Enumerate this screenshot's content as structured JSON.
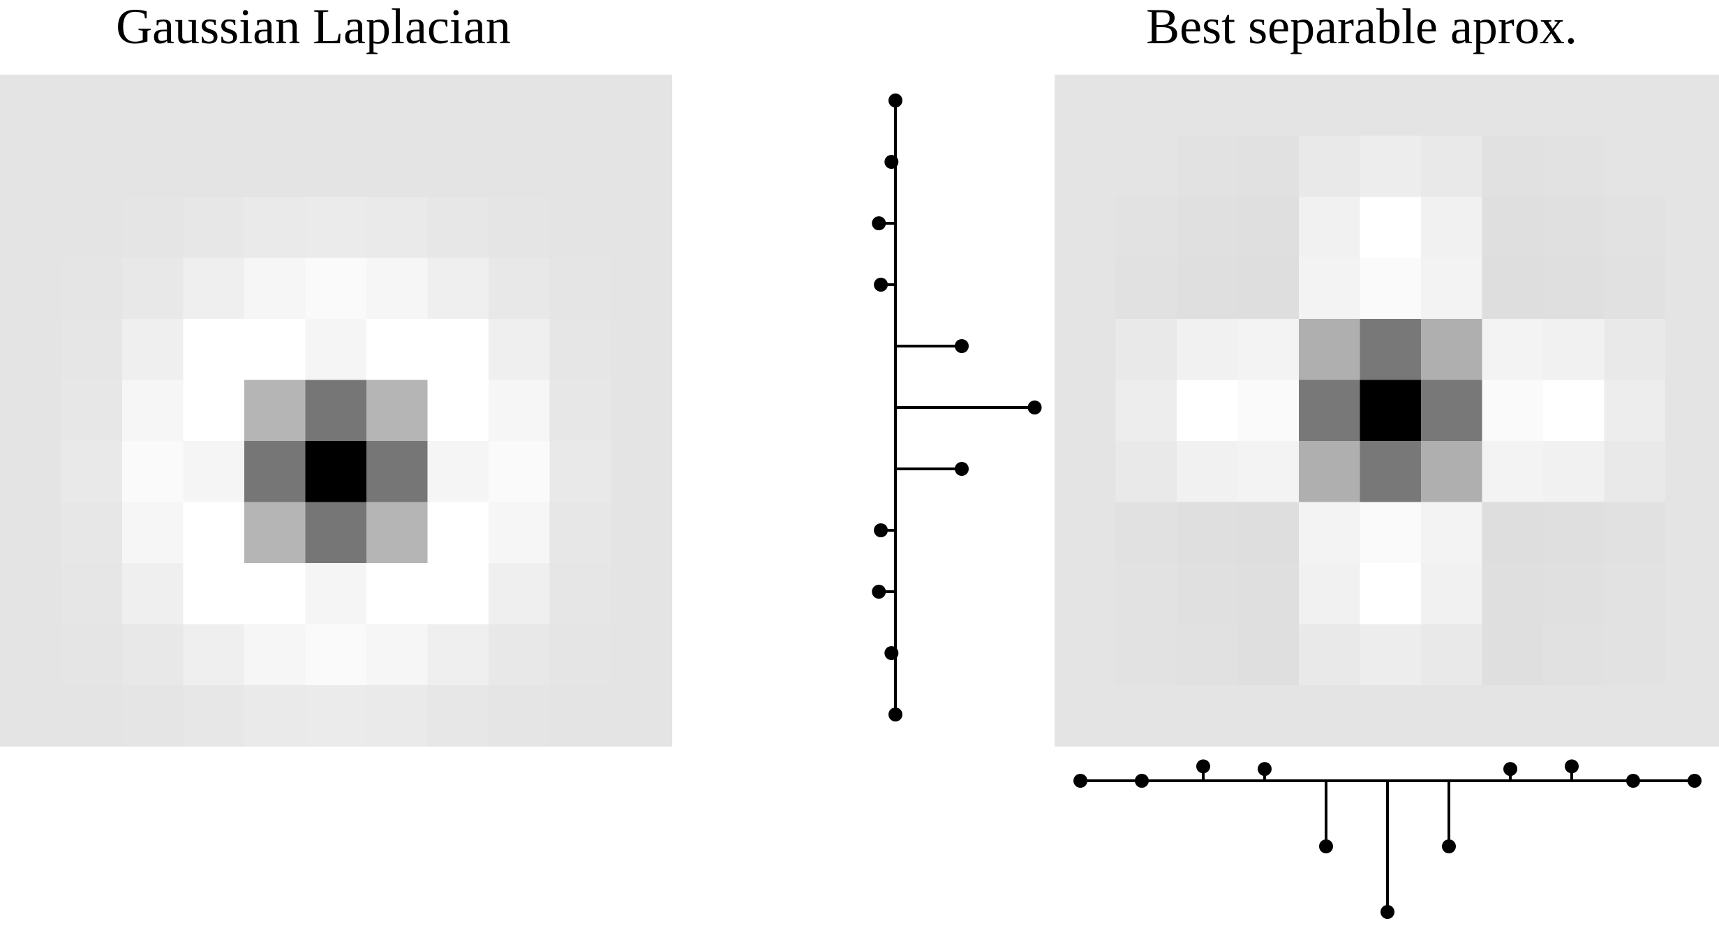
{
  "titles": {
    "left": "Gaussian Laplacian",
    "right": "Best separable aprox."
  },
  "colors": {
    "background": "#ffffff",
    "stem": "#000000"
  },
  "left_kernel_gray": [
    [
      228,
      228,
      228,
      228,
      228,
      228,
      228,
      228,
      228,
      228,
      228
    ],
    [
      228,
      228,
      228,
      228,
      228,
      228,
      228,
      228,
      228,
      228,
      228
    ],
    [
      228,
      228,
      229,
      231,
      234,
      235,
      234,
      231,
      229,
      228,
      228
    ],
    [
      228,
      229,
      232,
      239,
      246,
      250,
      246,
      239,
      232,
      229,
      228
    ],
    [
      228,
      230,
      239,
      255,
      255,
      245,
      255,
      255,
      239,
      230,
      228
    ],
    [
      228,
      231,
      246,
      255,
      181,
      118,
      181,
      255,
      246,
      231,
      228
    ],
    [
      228,
      233,
      250,
      245,
      118,
      0,
      118,
      245,
      250,
      233,
      228
    ],
    [
      228,
      231,
      246,
      255,
      181,
      118,
      181,
      255,
      246,
      231,
      228
    ],
    [
      228,
      230,
      239,
      255,
      255,
      245,
      255,
      255,
      239,
      230,
      228
    ],
    [
      228,
      229,
      232,
      239,
      246,
      250,
      246,
      239,
      232,
      229,
      228
    ],
    [
      228,
      228,
      229,
      231,
      234,
      235,
      234,
      231,
      229,
      228,
      228
    ]
  ],
  "right_kernel_gray": [
    [
      228,
      228,
      228,
      228,
      228,
      228,
      228,
      228,
      228,
      228,
      228
    ],
    [
      228,
      228,
      226,
      225,
      233,
      237,
      233,
      225,
      226,
      228,
      228
    ],
    [
      228,
      226,
      224,
      223,
      241,
      255,
      241,
      223,
      224,
      226,
      228
    ],
    [
      228,
      225,
      223,
      222,
      243,
      250,
      243,
      222,
      223,
      225,
      228
    ],
    [
      228,
      233,
      241,
      243,
      175,
      120,
      175,
      243,
      241,
      233,
      228
    ],
    [
      228,
      237,
      255,
      250,
      120,
      0,
      120,
      250,
      255,
      237,
      228
    ],
    [
      228,
      233,
      241,
      243,
      175,
      120,
      175,
      243,
      241,
      233,
      228
    ],
    [
      228,
      225,
      223,
      222,
      243,
      250,
      243,
      222,
      223,
      225,
      228
    ],
    [
      228,
      226,
      224,
      223,
      241,
      255,
      241,
      223,
      224,
      226,
      228
    ],
    [
      228,
      226,
      225,
      223,
      233,
      237,
      233,
      223,
      225,
      226,
      228
    ],
    [
      228,
      228,
      228,
      228,
      228,
      228,
      228,
      228,
      228,
      228,
      228
    ]
  ],
  "vertical_filter_taps": [
    0.0,
    -0.06,
    -0.25,
    -0.22,
    1.0,
    2.1,
    1.0,
    -0.22,
    -0.25,
    -0.06,
    0.0
  ],
  "horizontal_filter_taps": [
    0.0,
    0.0,
    -0.22,
    -0.18,
    1.0,
    2.0,
    1.0,
    -0.18,
    -0.22,
    0.0,
    0.0
  ]
}
